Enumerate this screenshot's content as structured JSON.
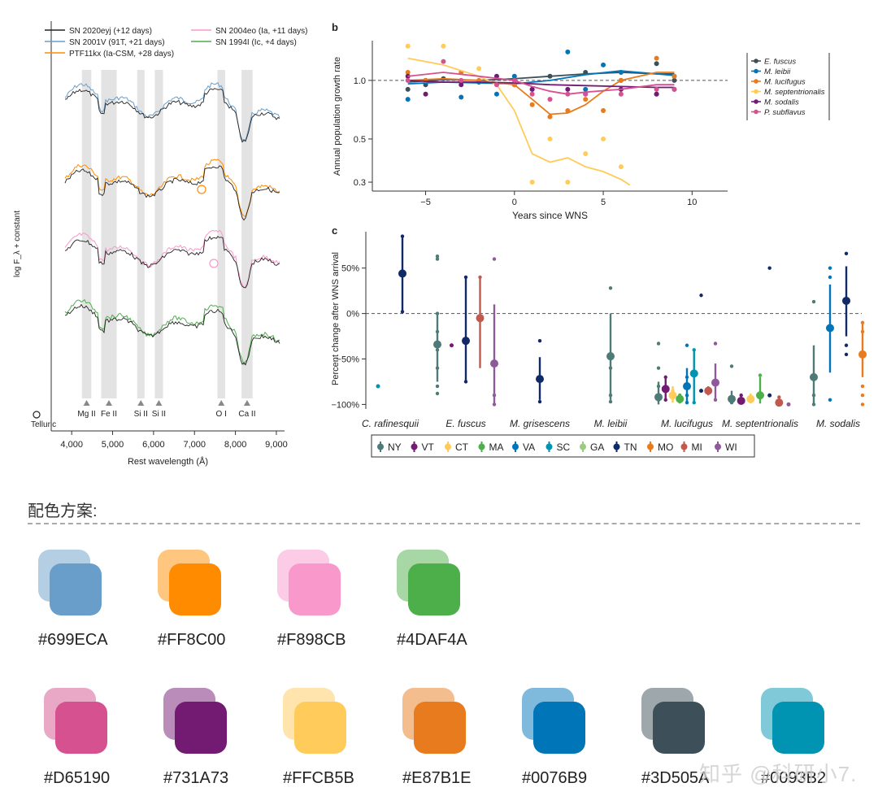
{
  "panel_a": {
    "chart_data": {
      "type": "line",
      "xlabel": "Rest wavelength (Å)",
      "ylabel": "log F_λ + constant",
      "xlim": [
        3500,
        9200
      ],
      "x_ticks": [
        "4,000",
        "5,000",
        "6,000",
        "7,000",
        "8,000",
        "9,000"
      ],
      "x_tick_values": [
        4000,
        5000,
        6000,
        7000,
        8000,
        9000
      ],
      "legend": [
        {
          "name": "SN 2020eyj (+12 days)",
          "color": "#222222"
        },
        {
          "name": "SN 2001V (91T, +21 days)",
          "color": "#699ECA"
        },
        {
          "name": "PTF11kx (Ia-CSM, +28 days)",
          "color": "#FF8C00"
        },
        {
          "name": "SN 2004eo (Ia, +11 days)",
          "color": "#F898CB"
        },
        {
          "name": "SN 1994I (Ic, +4 days)",
          "color": "#4DAF4A"
        }
      ],
      "bands": [
        {
          "label": "Mg II",
          "from": 4250,
          "to": 4480
        },
        {
          "label": "Fe II",
          "from": 4720,
          "to": 5100
        },
        {
          "label": "Si II",
          "from": 5600,
          "to": 5780
        },
        {
          "label": "Si II",
          "from": 6030,
          "to": 6230
        },
        {
          "label": "O I",
          "from": 7560,
          "to": 7750
        },
        {
          "label": "Ca II",
          "from": 8150,
          "to": 8420
        }
      ],
      "telluric_label": "Telluric"
    }
  },
  "panel_b": {
    "label": "b",
    "chart_data": {
      "type": "scatter",
      "xlabel": "Years since WNS",
      "ylabel": "Annual population growth rate",
      "xlim": [
        -8,
        12
      ],
      "ylim": [
        0.27,
        1.6
      ],
      "x_ticks": [
        "−5",
        "0",
        "5",
        "10"
      ],
      "x_tick_values": [
        -5,
        0,
        5,
        10
      ],
      "y_ticks": [
        "0.3",
        "0.5",
        "1.0"
      ],
      "y_tick_values": [
        0.3,
        0.5,
        1.0
      ],
      "reference_line": 1.0,
      "series": [
        {
          "name": "E. fuscus",
          "color": "#3D505A",
          "points": [
            [
              -6,
              0.9
            ],
            [
              -5,
              0.95
            ],
            [
              -4,
              1.02
            ],
            [
              -2,
              0.98
            ],
            [
              0,
              0.95
            ],
            [
              2,
              1.05
            ],
            [
              4,
              1.1
            ],
            [
              6,
              1.0
            ],
            [
              8,
              1.22
            ],
            [
              9,
              1.0
            ]
          ],
          "curve": [
            [
              -6,
              0.98
            ],
            [
              -4,
              1.01
            ],
            [
              -2,
              1.0
            ],
            [
              0,
              1.02
            ],
            [
              2,
              1.05
            ],
            [
              4,
              1.08
            ],
            [
              6,
              1.1
            ],
            [
              8,
              1.08
            ],
            [
              9,
              1.08
            ]
          ]
        },
        {
          "name": "M. leibii",
          "color": "#0076B9",
          "points": [
            [
              -6,
              0.8
            ],
            [
              -5,
              1.0
            ],
            [
              -3,
              0.82
            ],
            [
              -1,
              0.85
            ],
            [
              0,
              1.05
            ],
            [
              1,
              0.9
            ],
            [
              3,
              1.4
            ],
            [
              4,
              0.9
            ],
            [
              5,
              1.2
            ],
            [
              6,
              1.1
            ],
            [
              8,
              0.85
            ],
            [
              9,
              1.05
            ]
          ],
          "curve": [
            [
              -6,
              0.96
            ],
            [
              -4,
              0.98
            ],
            [
              -2,
              0.97
            ],
            [
              0,
              0.96
            ],
            [
              2,
              1.0
            ],
            [
              4,
              1.07
            ],
            [
              6,
              1.12
            ],
            [
              8,
              1.08
            ],
            [
              9,
              1.06
            ]
          ]
        },
        {
          "name": "M. lucifugus",
          "color": "#E87B1E",
          "points": [
            [
              -6,
              1.1
            ],
            [
              -5,
              1.0
            ],
            [
              -3,
              1.1
            ],
            [
              -2,
              1.0
            ],
            [
              0,
              0.95
            ],
            [
              1,
              0.75
            ],
            [
              2,
              0.65
            ],
            [
              3,
              0.7
            ],
            [
              4,
              0.8
            ],
            [
              5,
              0.7
            ],
            [
              6,
              1.0
            ],
            [
              8,
              1.3
            ],
            [
              9,
              1.05
            ]
          ],
          "curve": [
            [
              -6,
              1.0
            ],
            [
              -4,
              1.02
            ],
            [
              -2,
              1.0
            ],
            [
              0,
              0.95
            ],
            [
              1,
              0.8
            ],
            [
              2,
              0.67
            ],
            [
              3,
              0.68
            ],
            [
              4,
              0.75
            ],
            [
              5,
              0.88
            ],
            [
              6,
              1.0
            ],
            [
              8,
              1.1
            ],
            [
              9,
              1.1
            ]
          ]
        },
        {
          "name": "M. septentrionalis",
          "color": "#FFCB5B",
          "points": [
            [
              -6,
              1.5
            ],
            [
              -4,
              1.5
            ],
            [
              -2,
              1.15
            ],
            [
              0,
              1.0
            ],
            [
              1,
              0.3
            ],
            [
              2,
              0.5
            ],
            [
              3,
              0.3
            ],
            [
              4,
              0.42
            ],
            [
              5,
              0.5
            ],
            [
              6,
              0.36
            ]
          ],
          "curve": [
            [
              -6,
              1.3
            ],
            [
              -4,
              1.2
            ],
            [
              -2,
              1.05
            ],
            [
              -1,
              0.95
            ],
            [
              0,
              0.7
            ],
            [
              1,
              0.42
            ],
            [
              2,
              0.38
            ],
            [
              3,
              0.4
            ],
            [
              4,
              0.36
            ],
            [
              5,
              0.34
            ],
            [
              6,
              0.31
            ],
            [
              6.5,
              0.29
            ]
          ]
        },
        {
          "name": "M. sodalis",
          "color": "#731A73",
          "points": [
            [
              -6,
              1.05
            ],
            [
              -5,
              0.85
            ],
            [
              -3,
              0.95
            ],
            [
              -1,
              1.05
            ],
            [
              0,
              1.0
            ],
            [
              1,
              0.9
            ],
            [
              3,
              0.9
            ],
            [
              4,
              0.85
            ],
            [
              6,
              0.9
            ],
            [
              8,
              0.85
            ],
            [
              9,
              0.9
            ]
          ],
          "curve": [
            [
              -6,
              1.0
            ],
            [
              -4,
              0.98
            ],
            [
              -2,
              0.98
            ],
            [
              0,
              0.97
            ],
            [
              2,
              0.95
            ],
            [
              4,
              0.94
            ],
            [
              6,
              0.93
            ],
            [
              8,
              0.92
            ],
            [
              9,
              0.92
            ]
          ]
        },
        {
          "name": "P. subflavus",
          "color": "#D65190",
          "points": [
            [
              -6,
              1.0
            ],
            [
              -4,
              1.25
            ],
            [
              -3,
              1.0
            ],
            [
              -1,
              0.95
            ],
            [
              0,
              1.0
            ],
            [
              1,
              0.85
            ],
            [
              2,
              0.8
            ],
            [
              3,
              0.85
            ],
            [
              4,
              0.85
            ],
            [
              6,
              0.85
            ],
            [
              8,
              0.9
            ],
            [
              9,
              0.9
            ]
          ],
          "curve": [
            [
              -6,
              1.05
            ],
            [
              -4,
              1.1
            ],
            [
              -2,
              1.05
            ],
            [
              0,
              1.0
            ],
            [
              1,
              0.93
            ],
            [
              2,
              0.88
            ],
            [
              3,
              0.85
            ],
            [
              4,
              0.87
            ],
            [
              6,
              0.9
            ],
            [
              8,
              0.95
            ],
            [
              9,
              0.95
            ]
          ]
        }
      ]
    }
  },
  "panel_c": {
    "label": "c",
    "chart_data": {
      "type": "scatter",
      "ylabel": "Percent change after WNS arrival",
      "ylim": [
        -105,
        90
      ],
      "y_ticks": [
        "50%",
        "0%",
        "−50%",
        "−100%"
      ],
      "y_tick_values": [
        50,
        0,
        -50,
        -100
      ],
      "reference_line": 0,
      "categories": [
        "C. rafinesquii",
        "E. fuscus",
        "M. grisescens",
        "M. leibii",
        "M. lucifugus",
        "M. septentrionalis",
        "M. sodalis"
      ],
      "states": [
        {
          "code": "NY",
          "color": "#4E7A78"
        },
        {
          "code": "VT",
          "color": "#731A73"
        },
        {
          "code": "CT",
          "color": "#FFCB5B"
        },
        {
          "code": "MA",
          "color": "#4DAF4A"
        },
        {
          "code": "VA",
          "color": "#0076B9"
        },
        {
          "code": "SC",
          "color": "#0093B2"
        },
        {
          "code": "GA",
          "color": "#9BCB7E"
        },
        {
          "code": "TN",
          "color": "#0F2A66"
        },
        {
          "code": "MO",
          "color": "#E87B1E"
        },
        {
          "code": "MI",
          "color": "#C05A4E"
        },
        {
          "code": "WI",
          "color": "#8E5A9A"
        }
      ],
      "estimates": [
        {
          "species": 0,
          "state": "SC",
          "mean": -80,
          "low": -80,
          "high": -80,
          "pts": []
        },
        {
          "species": 0,
          "state": "TN",
          "mean": 44,
          "low": 2,
          "high": 85,
          "pts": [
            85,
            2
          ]
        },
        {
          "species": 1,
          "state": "NY",
          "mean": -34,
          "low": -75,
          "high": 0,
          "pts": [
            63,
            60,
            0,
            -20,
            -40,
            -60,
            -80,
            -88
          ]
        },
        {
          "species": 1,
          "state": "VT",
          "mean": -35,
          "low": -35,
          "high": -35,
          "pts": [
            -35
          ]
        },
        {
          "species": 1,
          "state": "TN",
          "mean": -30,
          "low": -75,
          "high": 40,
          "pts": [
            40,
            -75
          ]
        },
        {
          "species": 1,
          "state": "MI",
          "mean": -5,
          "low": -60,
          "high": 40,
          "pts": [
            40
          ]
        },
        {
          "species": 1,
          "state": "WI",
          "mean": -55,
          "low": -100,
          "high": 10,
          "pts": [
            60,
            -100,
            -90
          ]
        },
        {
          "species": 2,
          "state": "TN",
          "mean": -72,
          "low": -95,
          "high": -48,
          "pts": [
            -30,
            -97
          ]
        },
        {
          "species": 3,
          "state": "NY",
          "mean": -47,
          "low": -95,
          "high": 0,
          "pts": [
            28,
            -60,
            -90,
            -97
          ]
        },
        {
          "species": 4,
          "state": "NY",
          "mean": -92,
          "low": -100,
          "high": -75,
          "pts": [
            -33,
            -60,
            -80,
            -95
          ]
        },
        {
          "species": 4,
          "state": "VT",
          "mean": -83,
          "low": -95,
          "high": -70,
          "pts": [
            -70,
            -95
          ]
        },
        {
          "species": 4,
          "state": "CT",
          "mean": -90,
          "low": -98,
          "high": -80,
          "pts": [
            -85
          ]
        },
        {
          "species": 4,
          "state": "MA",
          "mean": -94,
          "low": -99,
          "high": -88,
          "pts": [
            -90
          ]
        },
        {
          "species": 4,
          "state": "VA",
          "mean": -80,
          "low": -98,
          "high": -60,
          "pts": [
            -35,
            -70,
            -90,
            -98
          ]
        },
        {
          "species": 4,
          "state": "SC",
          "mean": -66,
          "low": -98,
          "high": -40,
          "pts": [
            -40,
            -98
          ]
        },
        {
          "species": 4,
          "state": "TN",
          "mean": -85,
          "low": -85,
          "high": -85,
          "pts": [
            20
          ]
        },
        {
          "species": 4,
          "state": "MI",
          "mean": -85,
          "low": -90,
          "high": -80,
          "pts": []
        },
        {
          "species": 4,
          "state": "WI",
          "mean": -76,
          "low": -95,
          "high": -55,
          "pts": [
            -33,
            -95
          ]
        },
        {
          "species": 5,
          "state": "NY",
          "mean": -94,
          "low": -99,
          "high": -85,
          "pts": [
            -58,
            -98
          ]
        },
        {
          "species": 5,
          "state": "VT",
          "mean": -96,
          "low": -99,
          "high": -88,
          "pts": [
            -90
          ]
        },
        {
          "species": 5,
          "state": "CT",
          "mean": -94,
          "low": -99,
          "high": -88,
          "pts": []
        },
        {
          "species": 5,
          "state": "MA",
          "mean": -90,
          "low": -99,
          "high": -70,
          "pts": [
            -68
          ]
        },
        {
          "species": 5,
          "state": "TN",
          "mean": -90,
          "low": -90,
          "high": -90,
          "pts": [
            50
          ]
        },
        {
          "species": 5,
          "state": "MI",
          "mean": -98,
          "low": -100,
          "high": -92,
          "pts": [
            -92
          ]
        },
        {
          "species": 5,
          "state": "WI",
          "mean": -100,
          "low": -100,
          "high": -100,
          "pts": []
        },
        {
          "species": 6,
          "state": "NY",
          "mean": -70,
          "low": -100,
          "high": -35,
          "pts": [
            13,
            -90,
            -100
          ]
        },
        {
          "species": 6,
          "state": "VA",
          "mean": -16,
          "low": -65,
          "high": 32,
          "pts": [
            50,
            40,
            -95
          ]
        },
        {
          "species": 6,
          "state": "TN",
          "mean": 14,
          "low": -25,
          "high": 52,
          "pts": [
            66,
            -35,
            -45
          ]
        },
        {
          "species": 6,
          "state": "MO",
          "mean": -45,
          "low": -70,
          "high": -10,
          "pts": [
            -10,
            -20,
            -80,
            -90,
            -100
          ]
        }
      ]
    }
  },
  "palette": {
    "title": "配色方案:",
    "row1": [
      {
        "hex": "#699ECA",
        "light": "#B4CEE4"
      },
      {
        "hex": "#FF8C00",
        "light": "#FFC67F"
      },
      {
        "hex": "#F898CB",
        "light": "#FCCBE5"
      },
      {
        "hex": "#4DAF4A",
        "light": "#A6D7A4"
      }
    ],
    "row2": [
      {
        "hex": "#D65190",
        "light": "#EAA8C7"
      },
      {
        "hex": "#731A73",
        "light": "#B98CB9"
      },
      {
        "hex": "#FFCB5B",
        "light": "#FFE5AD"
      },
      {
        "hex": "#E87B1E",
        "light": "#F3BD8E"
      },
      {
        "hex": "#0076B9",
        "light": "#7FBADC"
      },
      {
        "hex": "#3D505A",
        "light": "#9EA7AC"
      },
      {
        "hex": "#0093B2",
        "light": "#7FC9D8"
      }
    ]
  },
  "watermark": "知乎 @科研小7."
}
